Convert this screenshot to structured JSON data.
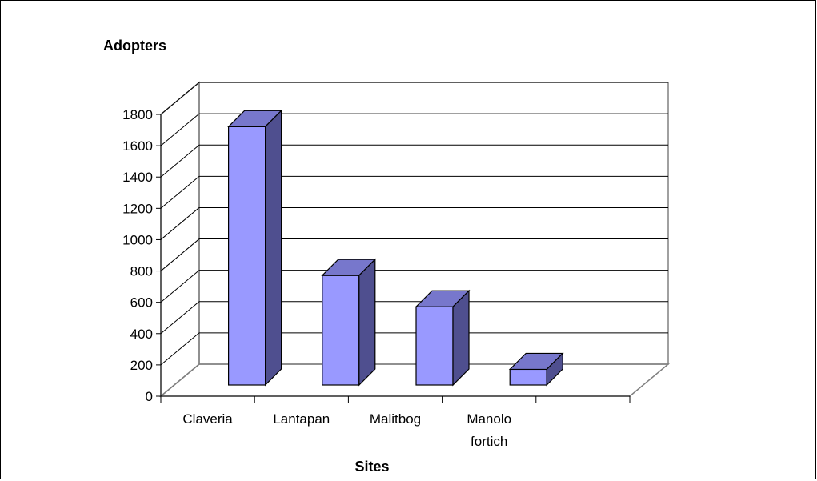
{
  "chart_data": {
    "type": "bar",
    "ylabel": "Adopters",
    "xlabel": "Sites",
    "categories": [
      [
        "Claveria"
      ],
      [
        "Lantapan"
      ],
      [
        "Malitbog"
      ],
      [
        "Manolo",
        "fortich"
      ]
    ],
    "values": [
      1650,
      700,
      500,
      100
    ],
    "ylim": [
      0,
      1800
    ],
    "yticks": [
      0,
      200,
      400,
      600,
      800,
      1000,
      1200,
      1400,
      1600,
      1800
    ],
    "grid": true,
    "style": "3d-column",
    "colors": {
      "front": "#9999ff",
      "top": "#7777cc",
      "side": "#4f4f8f",
      "grid": "#000000"
    }
  }
}
